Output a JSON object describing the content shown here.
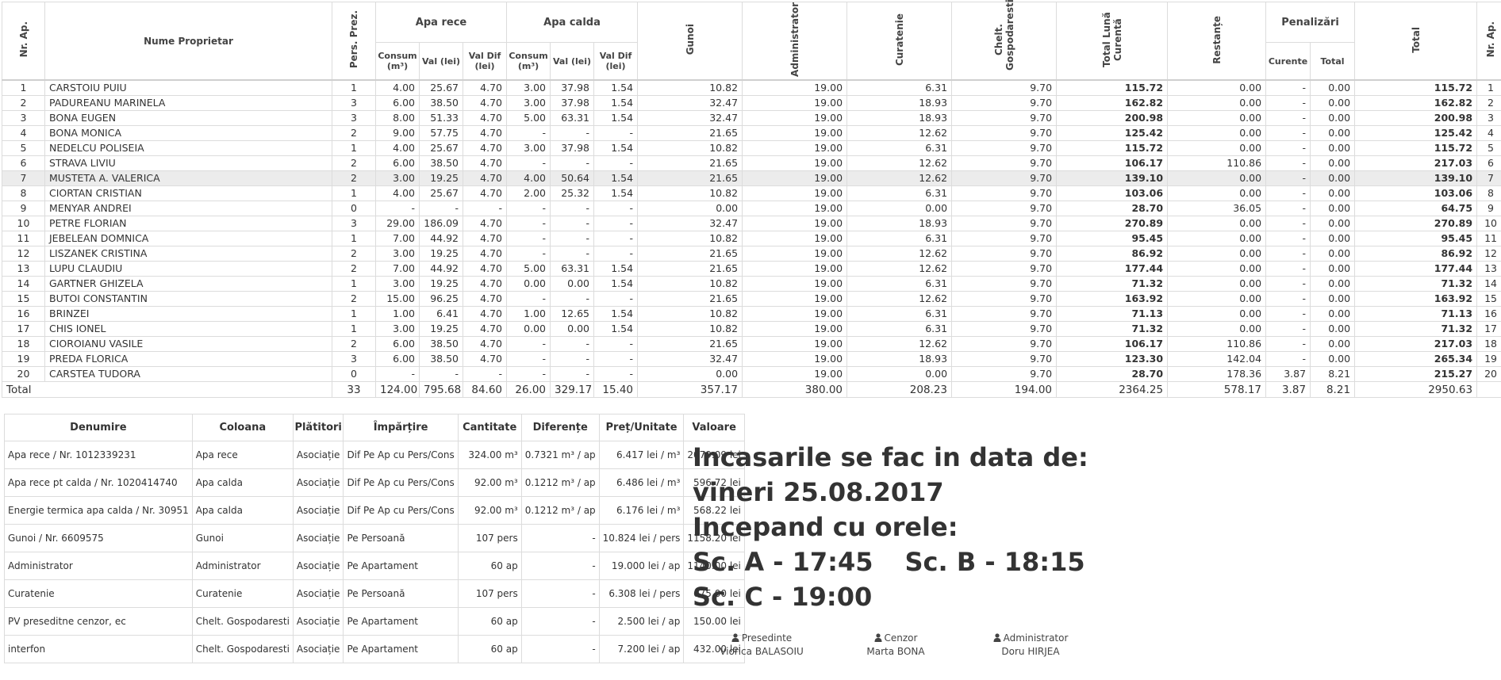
{
  "main_table": {
    "headers": {
      "nr_ap": "Nr. Ap.",
      "name": "Nume Proprietar",
      "pers": "Pers. Prez.",
      "apa_rece": "Apa rece",
      "apa_calda": "Apa calda",
      "consum": "Consum (m³)",
      "val": "Val (lei)",
      "val_dif": "Val Dif (lei)",
      "gunoi": "Gunoi",
      "administrator": "Administrator",
      "curatenie": "Curatenie",
      "chelt": "Chelt. Gospodaresti",
      "total_luna": "Total Lună Curentă",
      "restante": "Restanțe",
      "penalizari": "Penalizări",
      "curente": "Curente",
      "total_pen": "Total",
      "total": "Total",
      "nr_ap_right": "Nr. Ap."
    },
    "rows": [
      [
        "1",
        "CARSTOIU PUIU",
        "1",
        "4.00",
        "25.67",
        "4.70",
        "3.00",
        "37.98",
        "1.54",
        "10.82",
        "19.00",
        "6.31",
        "9.70",
        "115.72",
        "0.00",
        "-",
        "0.00",
        "115.72",
        "1"
      ],
      [
        "2",
        "PADUREANU MARINELA",
        "3",
        "6.00",
        "38.50",
        "4.70",
        "3.00",
        "37.98",
        "1.54",
        "32.47",
        "19.00",
        "18.93",
        "9.70",
        "162.82",
        "0.00",
        "-",
        "0.00",
        "162.82",
        "2"
      ],
      [
        "3",
        "BONA EUGEN",
        "3",
        "8.00",
        "51.33",
        "4.70",
        "5.00",
        "63.31",
        "1.54",
        "32.47",
        "19.00",
        "18.93",
        "9.70",
        "200.98",
        "0.00",
        "-",
        "0.00",
        "200.98",
        "3"
      ],
      [
        "4",
        "BONA MONICA",
        "2",
        "9.00",
        "57.75",
        "4.70",
        "-",
        "-",
        "-",
        "21.65",
        "19.00",
        "12.62",
        "9.70",
        "125.42",
        "0.00",
        "-",
        "0.00",
        "125.42",
        "4"
      ],
      [
        "5",
        "NEDELCU POLISEIA",
        "1",
        "4.00",
        "25.67",
        "4.70",
        "3.00",
        "37.98",
        "1.54",
        "10.82",
        "19.00",
        "6.31",
        "9.70",
        "115.72",
        "0.00",
        "-",
        "0.00",
        "115.72",
        "5"
      ],
      [
        "6",
        "STRAVA LIVIU",
        "2",
        "6.00",
        "38.50",
        "4.70",
        "-",
        "-",
        "-",
        "21.65",
        "19.00",
        "12.62",
        "9.70",
        "106.17",
        "110.86",
        "-",
        "0.00",
        "217.03",
        "6"
      ],
      [
        "7",
        "MUSTETA A. VALERICA",
        "2",
        "3.00",
        "19.25",
        "4.70",
        "4.00",
        "50.64",
        "1.54",
        "21.65",
        "19.00",
        "12.62",
        "9.70",
        "139.10",
        "0.00",
        "-",
        "0.00",
        "139.10",
        "7"
      ],
      [
        "8",
        "CIORTAN CRISTIAN",
        "1",
        "4.00",
        "25.67",
        "4.70",
        "2.00",
        "25.32",
        "1.54",
        "10.82",
        "19.00",
        "6.31",
        "9.70",
        "103.06",
        "0.00",
        "-",
        "0.00",
        "103.06",
        "8"
      ],
      [
        "9",
        "MENYAR ANDREI",
        "0",
        "-",
        "-",
        "-",
        "-",
        "-",
        "-",
        "0.00",
        "19.00",
        "0.00",
        "9.70",
        "28.70",
        "36.05",
        "-",
        "0.00",
        "64.75",
        "9"
      ],
      [
        "10",
        "PETRE FLORIAN",
        "3",
        "29.00",
        "186.09",
        "4.70",
        "-",
        "-",
        "-",
        "32.47",
        "19.00",
        "18.93",
        "9.70",
        "270.89",
        "0.00",
        "-",
        "0.00",
        "270.89",
        "10"
      ],
      [
        "11",
        "JEBELEAN DOMNICA",
        "1",
        "7.00",
        "44.92",
        "4.70",
        "-",
        "-",
        "-",
        "10.82",
        "19.00",
        "6.31",
        "9.70",
        "95.45",
        "0.00",
        "-",
        "0.00",
        "95.45",
        "11"
      ],
      [
        "12",
        "LISZANEK CRISTINA",
        "2",
        "3.00",
        "19.25",
        "4.70",
        "-",
        "-",
        "-",
        "21.65",
        "19.00",
        "12.62",
        "9.70",
        "86.92",
        "0.00",
        "-",
        "0.00",
        "86.92",
        "12"
      ],
      [
        "13",
        "LUPU CLAUDIU",
        "2",
        "7.00",
        "44.92",
        "4.70",
        "5.00",
        "63.31",
        "1.54",
        "21.65",
        "19.00",
        "12.62",
        "9.70",
        "177.44",
        "0.00",
        "-",
        "0.00",
        "177.44",
        "13"
      ],
      [
        "14",
        "GARTNER GHIZELA",
        "1",
        "3.00",
        "19.25",
        "4.70",
        "0.00",
        "0.00",
        "1.54",
        "10.82",
        "19.00",
        "6.31",
        "9.70",
        "71.32",
        "0.00",
        "-",
        "0.00",
        "71.32",
        "14"
      ],
      [
        "15",
        "BUTOI CONSTANTIN",
        "2",
        "15.00",
        "96.25",
        "4.70",
        "-",
        "-",
        "-",
        "21.65",
        "19.00",
        "12.62",
        "9.70",
        "163.92",
        "0.00",
        "-",
        "0.00",
        "163.92",
        "15"
      ],
      [
        "16",
        "BRINZEI",
        "1",
        "1.00",
        "6.41",
        "4.70",
        "1.00",
        "12.65",
        "1.54",
        "10.82",
        "19.00",
        "6.31",
        "9.70",
        "71.13",
        "0.00",
        "-",
        "0.00",
        "71.13",
        "16"
      ],
      [
        "17",
        "CHIS IONEL",
        "1",
        "3.00",
        "19.25",
        "4.70",
        "0.00",
        "0.00",
        "1.54",
        "10.82",
        "19.00",
        "6.31",
        "9.70",
        "71.32",
        "0.00",
        "-",
        "0.00",
        "71.32",
        "17"
      ],
      [
        "18",
        "CIOROIANU VASILE",
        "2",
        "6.00",
        "38.50",
        "4.70",
        "-",
        "-",
        "-",
        "21.65",
        "19.00",
        "12.62",
        "9.70",
        "106.17",
        "110.86",
        "-",
        "0.00",
        "217.03",
        "18"
      ],
      [
        "19",
        "PREDA FLORICA",
        "3",
        "6.00",
        "38.50",
        "4.70",
        "-",
        "-",
        "-",
        "32.47",
        "19.00",
        "18.93",
        "9.70",
        "123.30",
        "142.04",
        "-",
        "0.00",
        "265.34",
        "19"
      ],
      [
        "20",
        "CARSTEA TUDORA",
        "0",
        "-",
        "-",
        "-",
        "-",
        "-",
        "-",
        "0.00",
        "19.00",
        "0.00",
        "9.70",
        "28.70",
        "178.36",
        "3.87",
        "8.21",
        "215.27",
        "20"
      ]
    ],
    "total_row": {
      "label": "Total",
      "values": [
        "33",
        "124.00",
        "795.68",
        "84.60",
        "26.00",
        "329.17",
        "15.40",
        "357.17",
        "380.00",
        "208.23",
        "194.00",
        "2364.25",
        "578.17",
        "3.87",
        "8.21",
        "2950.63",
        ""
      ]
    }
  },
  "cost_table": {
    "headers": [
      "Denumire",
      "Coloana",
      "Plătitori",
      "Împărțire",
      "Cantitate",
      "Diferențe",
      "Preț/Unitate",
      "Valoare"
    ],
    "rows": [
      [
        "Apa rece / Nr. 1012339231",
        "Apa rece",
        "Asociație",
        "Dif Pe Ap cu Pers/Cons",
        "324.00 m³",
        "0.7321 m³ / ap",
        "6.417 lei / m³",
        "2079.09 lei"
      ],
      [
        "Apa rece pt calda / Nr. 1020414740",
        "Apa calda",
        "Asociație",
        "Dif Pe Ap cu Pers/Cons",
        "92.00 m³",
        "0.1212 m³ / ap",
        "6.486 lei / m³",
        "596.72 lei"
      ],
      [
        "Energie termica apa calda / Nr. 30951",
        "Apa calda",
        "Asociație",
        "Dif Pe Ap cu Pers/Cons",
        "92.00 m³",
        "0.1212 m³ / ap",
        "6.176 lei / m³",
        "568.22 lei"
      ],
      [
        "Gunoi / Nr. 6609575",
        "Gunoi",
        "Asociație",
        "Pe Persoană",
        "107 pers",
        "-",
        "10.824 lei / pers",
        "1158.20 lei"
      ],
      [
        "Administrator",
        "Administrator",
        "Asociație",
        "Pe Apartament",
        "60 ap",
        "-",
        "19.000 lei / ap",
        "1140.00 lei"
      ],
      [
        "Curatenie",
        "Curatenie",
        "Asociație",
        "Pe Persoană",
        "107 pers",
        "-",
        "6.308 lei / pers",
        "675.00 lei"
      ],
      [
        "PV preseditne cenzor, ec",
        "Chelt. Gospodaresti",
        "Asociație",
        "Pe Apartament",
        "60 ap",
        "-",
        "2.500 lei / ap",
        "150.00 lei"
      ],
      [
        "interfon",
        "Chelt. Gospodaresti",
        "Asociație",
        "Pe Apartament",
        "60 ap",
        "-",
        "7.200 lei / ap",
        "432.00 lei"
      ]
    ]
  },
  "notice": {
    "line1": "Incasarile se fac in data de:",
    "line2": "vineri 25.08.2017",
    "line3": "Incepand cu orele:",
    "sc_a": "Sc. A - 17:45",
    "sc_b": "Sc. B - 18:15",
    "sc_c": "Sc. C - 19:00"
  },
  "signatures": [
    {
      "role": "Presedinte",
      "name": "Viorica BALASOIU",
      "icon": "user-icon"
    },
    {
      "role": "Cenzor",
      "name": "Marta BONA",
      "icon": "user-icon"
    },
    {
      "role": "Administrator",
      "name": "Doru HIRJEA",
      "icon": "user-icon"
    }
  ]
}
